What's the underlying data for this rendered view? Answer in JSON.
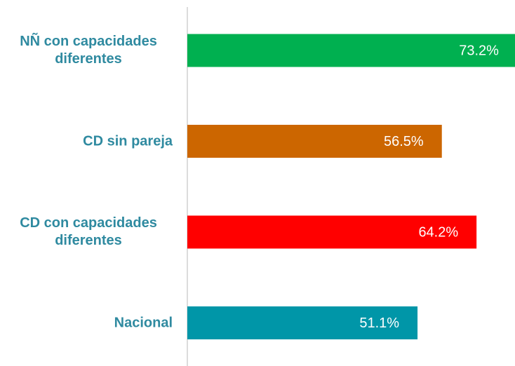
{
  "chart_data": {
    "type": "bar",
    "orientation": "horizontal",
    "categories": [
      "NÑ con capacidades diferentes",
      "CD sin pareja",
      "CD con capacidades diferentes",
      "Nacional"
    ],
    "values": [
      73.2,
      56.5,
      64.2,
      51.1
    ],
    "value_labels": [
      "73.2%",
      "56.5%",
      "64.2%",
      "51.1%"
    ],
    "colors": [
      "#00b050",
      "#cc6600",
      "#ff0000",
      "#0096a8"
    ]
  }
}
